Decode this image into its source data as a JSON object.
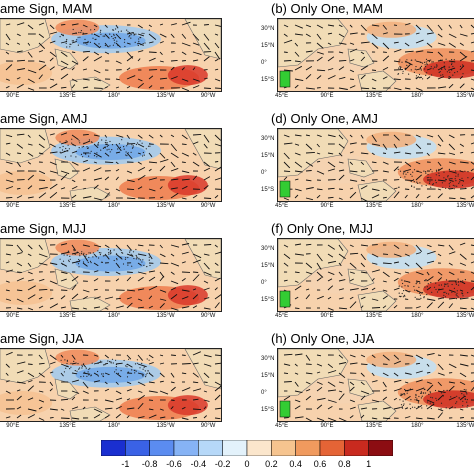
{
  "panels": [
    {
      "title": "ame Sign, MAM",
      "lat_labels": [],
      "lon_labels": [
        "90°E",
        "135°E",
        "180°",
        "135°W",
        "90°W"
      ]
    },
    {
      "title": "(b) Only One, MAM",
      "lat_labels": [
        "30°N",
        "15°N",
        "0°",
        "15°S"
      ],
      "lon_labels": [
        "45°E",
        "90°E",
        "135°E",
        "180°",
        "135°W"
      ]
    },
    {
      "title": "ame Sign, AMJ",
      "lat_labels": [],
      "lon_labels": [
        "90°E",
        "135°E",
        "180°",
        "135°W",
        "90°W"
      ]
    },
    {
      "title": "(d) Only One, AMJ",
      "lat_labels": [
        "30°N",
        "15°N",
        "0°",
        "15°S"
      ],
      "lon_labels": [
        "45°E",
        "90°E",
        "135°E",
        "180°",
        "135°W"
      ]
    },
    {
      "title": "ame Sign, MJJ",
      "lat_labels": [],
      "lon_labels": [
        "90°E",
        "135°E",
        "180°",
        "135°W",
        "90°W"
      ]
    },
    {
      "title": "(f) Only One, MJJ",
      "lat_labels": [
        "30°N",
        "15°N",
        "0°",
        "15°S"
      ],
      "lon_labels": [
        "45°E",
        "90°E",
        "135°E",
        "180°",
        "135°W"
      ]
    },
    {
      "title": "ame Sign, JJA",
      "lat_labels": [],
      "lon_labels": [
        "90°E",
        "135°E",
        "180°",
        "135°W",
        "90°W"
      ]
    },
    {
      "title": "(h) Only One, JJA",
      "lat_labels": [
        "30°N",
        "15°N",
        "0°",
        "15°S"
      ],
      "lon_labels": [
        "45°E",
        "90°E",
        "135°E",
        "180°",
        "135°W"
      ]
    }
  ],
  "colorbar": {
    "labels": [
      "-1",
      "-0.8",
      "-0.6",
      "-0.4",
      "-0.2",
      "0",
      "0.2",
      "0.4",
      "0.6",
      "0.8",
      "1"
    ],
    "colors": [
      "#1a2fd0",
      "#3a62e6",
      "#5b8cf0",
      "#86b3f5",
      "#b6d8f8",
      "#e3f2fb",
      "#fbe6cc",
      "#f6c48f",
      "#f09a5e",
      "#e56436",
      "#c92a1f",
      "#8c0d12"
    ]
  },
  "colors": {
    "land": "#f2ddb4",
    "ocean_base": "#f6d3b0",
    "coast": "#666666"
  }
}
